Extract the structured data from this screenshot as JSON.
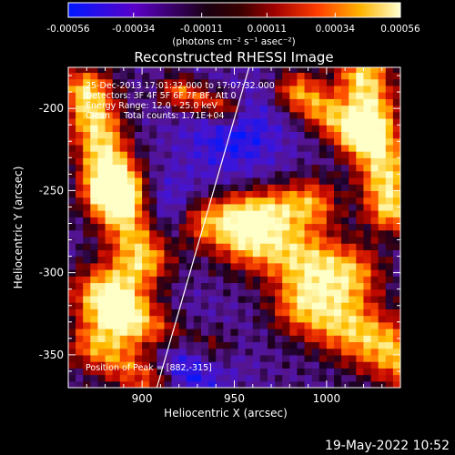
{
  "chart_data": {
    "type": "heatmap",
    "title": "Reconstructed RHESSI Image",
    "xlabel": "Heliocentric X (arcsec)",
    "ylabel": "Heliocentric Y (arcsec)",
    "xlim": [
      860,
      1040
    ],
    "ylim": [
      -370,
      -175
    ],
    "x_ticks": [
      900,
      950,
      1000
    ],
    "y_ticks": [
      -200,
      -250,
      -300,
      -350
    ],
    "colorbar": {
      "label": "(photons cm⁻² s⁻¹ asec⁻²)",
      "range": [
        -0.00056,
        0.00056
      ],
      "tick_labels": [
        "-0.00056",
        "-0.00034",
        "-0.00011",
        "0.00011",
        "0.00034",
        "0.00056"
      ],
      "tick_values": [
        -0.00056,
        -0.00034,
        -0.00011,
        0.00011,
        0.00034,
        0.00056
      ]
    },
    "annotations": {
      "time": "25-Dec-2013 17:01:32.000 to 17:07:32.000",
      "detectors": "Detectors: 3F 4F 5F 6F 7F 8F, Att 0",
      "energy": "Energy Range: 12.0 - 25.0 keV",
      "clean": "Clean     Total counts: 1.71E+04",
      "peak": "Position of Peak = [882,-315]"
    },
    "peak": [
      882,
      -315
    ],
    "limb_line": {
      "x": [
        908,
        958
      ],
      "y": [
        -370,
        -175
      ]
    },
    "grid": false,
    "legend": "none"
  },
  "footer": {
    "timestamp": "19-May-2022 10:52"
  }
}
